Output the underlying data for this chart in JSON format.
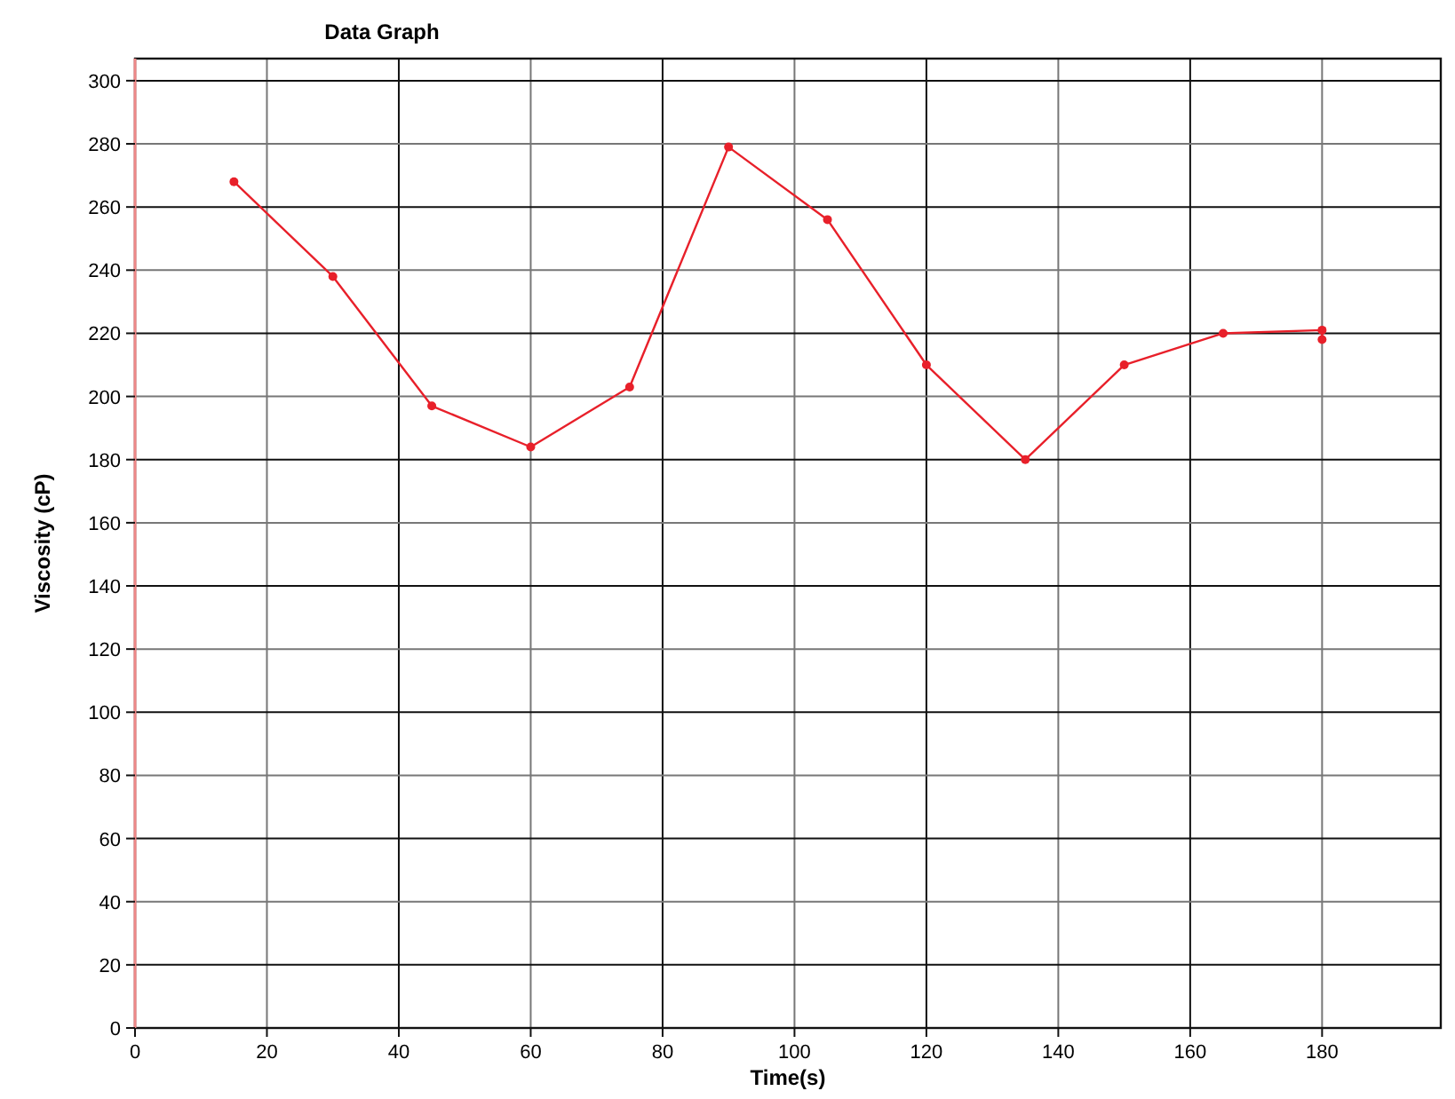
{
  "chart_data": {
    "type": "line",
    "title": "Data Graph",
    "xlabel": "Time(s)",
    "ylabel": "Viscosity (cP)",
    "x": [
      15,
      30,
      45,
      60,
      75,
      90,
      105,
      120,
      135,
      150,
      165,
      180,
      180
    ],
    "series": [
      {
        "color": "#e8202a",
        "values": [
          268,
          238,
          197,
          184,
          203,
          279,
          256,
          210,
          180,
          210,
          220,
          221,
          218
        ]
      }
    ],
    "xlim": [
      0,
      198
    ],
    "ylim": [
      0,
      307
    ],
    "xticks": [
      0,
      20,
      40,
      60,
      80,
      100,
      120,
      140,
      160,
      180
    ],
    "yticks": [
      0,
      20,
      40,
      60,
      80,
      100,
      120,
      140,
      160,
      180,
      200,
      220,
      240,
      260,
      280,
      300
    ],
    "grid": true,
    "marker": "circle",
    "line_style": "solid"
  }
}
